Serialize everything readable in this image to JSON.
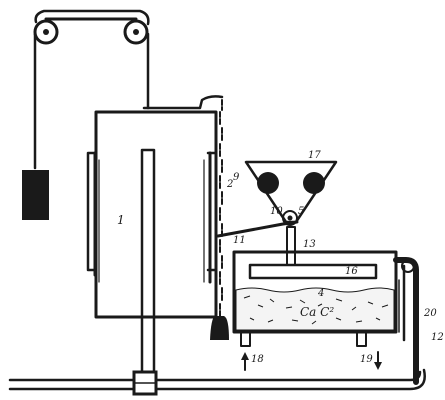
{
  "labels": {
    "gasholder_bell": "1",
    "chain": "2",
    "hopper_left_roller": "9",
    "lever_arm": "10",
    "lever_end": "11",
    "hopper": "17",
    "hopper_pivot": "5",
    "spindle": "13",
    "spreader_plate": "16",
    "carbide_content": "4",
    "carbide_formula": "Ca C²",
    "inlet_pipe": "18",
    "outlet_pipe": "19",
    "right_label_a": "20",
    "right_label_b": "12"
  },
  "colors": {
    "ink": "#1a1a1a",
    "paper": "#ffffff"
  }
}
